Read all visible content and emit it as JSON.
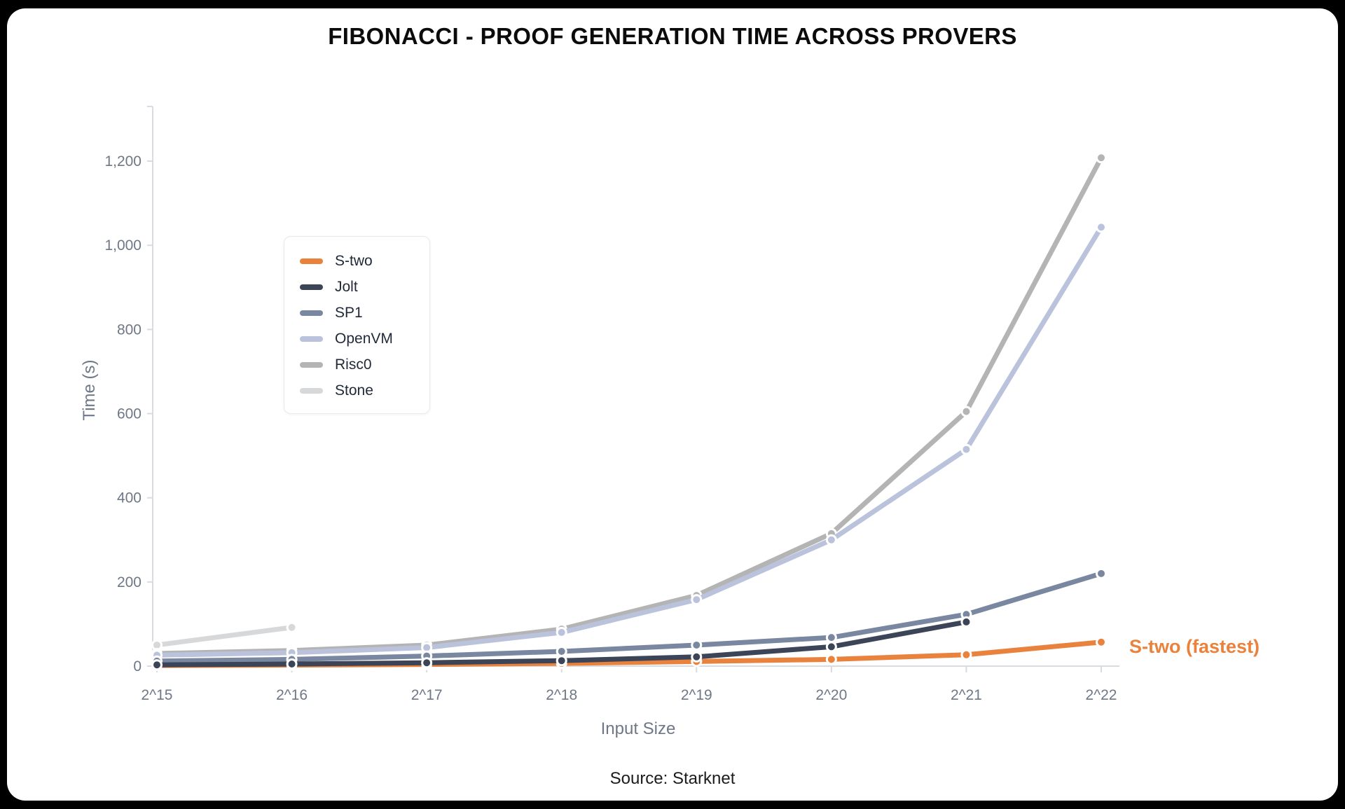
{
  "chart_data": {
    "type": "line",
    "title": "FIBONACCI - PROOF GENERATION TIME ACROSS PROVERS",
    "xlabel": "Input Size",
    "ylabel": "Time (s)",
    "source": "Source: Starknet",
    "annotation": "S-two (fastest)",
    "x": [
      "2^15",
      "2^16",
      "2^17",
      "2^18",
      "2^19",
      "2^20",
      "2^21",
      "2^22"
    ],
    "ylim": [
      0,
      1300
    ],
    "yticks": [
      0,
      200,
      400,
      600,
      800,
      1000,
      1200
    ],
    "ytick_labels": [
      "0",
      "200",
      "400",
      "600",
      "800",
      "1,000",
      "1,200"
    ],
    "grid": false,
    "legend_position": "upper-left-inside",
    "series": [
      {
        "name": "S-two",
        "color": "#E8823C",
        "values": [
          1.5,
          2.5,
          4,
          6.5,
          11,
          16,
          27,
          57
        ]
      },
      {
        "name": "Jolt",
        "color": "#3C4557",
        "values": [
          3,
          5,
          8,
          13,
          22,
          46,
          105
        ]
      },
      {
        "name": "SP1",
        "color": "#7A87A0",
        "values": [
          12,
          16,
          24,
          35,
          50,
          68,
          123,
          220
        ]
      },
      {
        "name": "OpenVM",
        "color": "#BAC3DB",
        "values": [
          26,
          32,
          44,
          80,
          158,
          300,
          515,
          1043
        ]
      },
      {
        "name": "Risc0",
        "color": "#B4B4B4",
        "values": [
          30,
          37,
          50,
          88,
          168,
          315,
          605,
          1208
        ]
      },
      {
        "name": "Stone",
        "color": "#D7D8DA",
        "values": [
          50,
          92
        ]
      }
    ]
  }
}
